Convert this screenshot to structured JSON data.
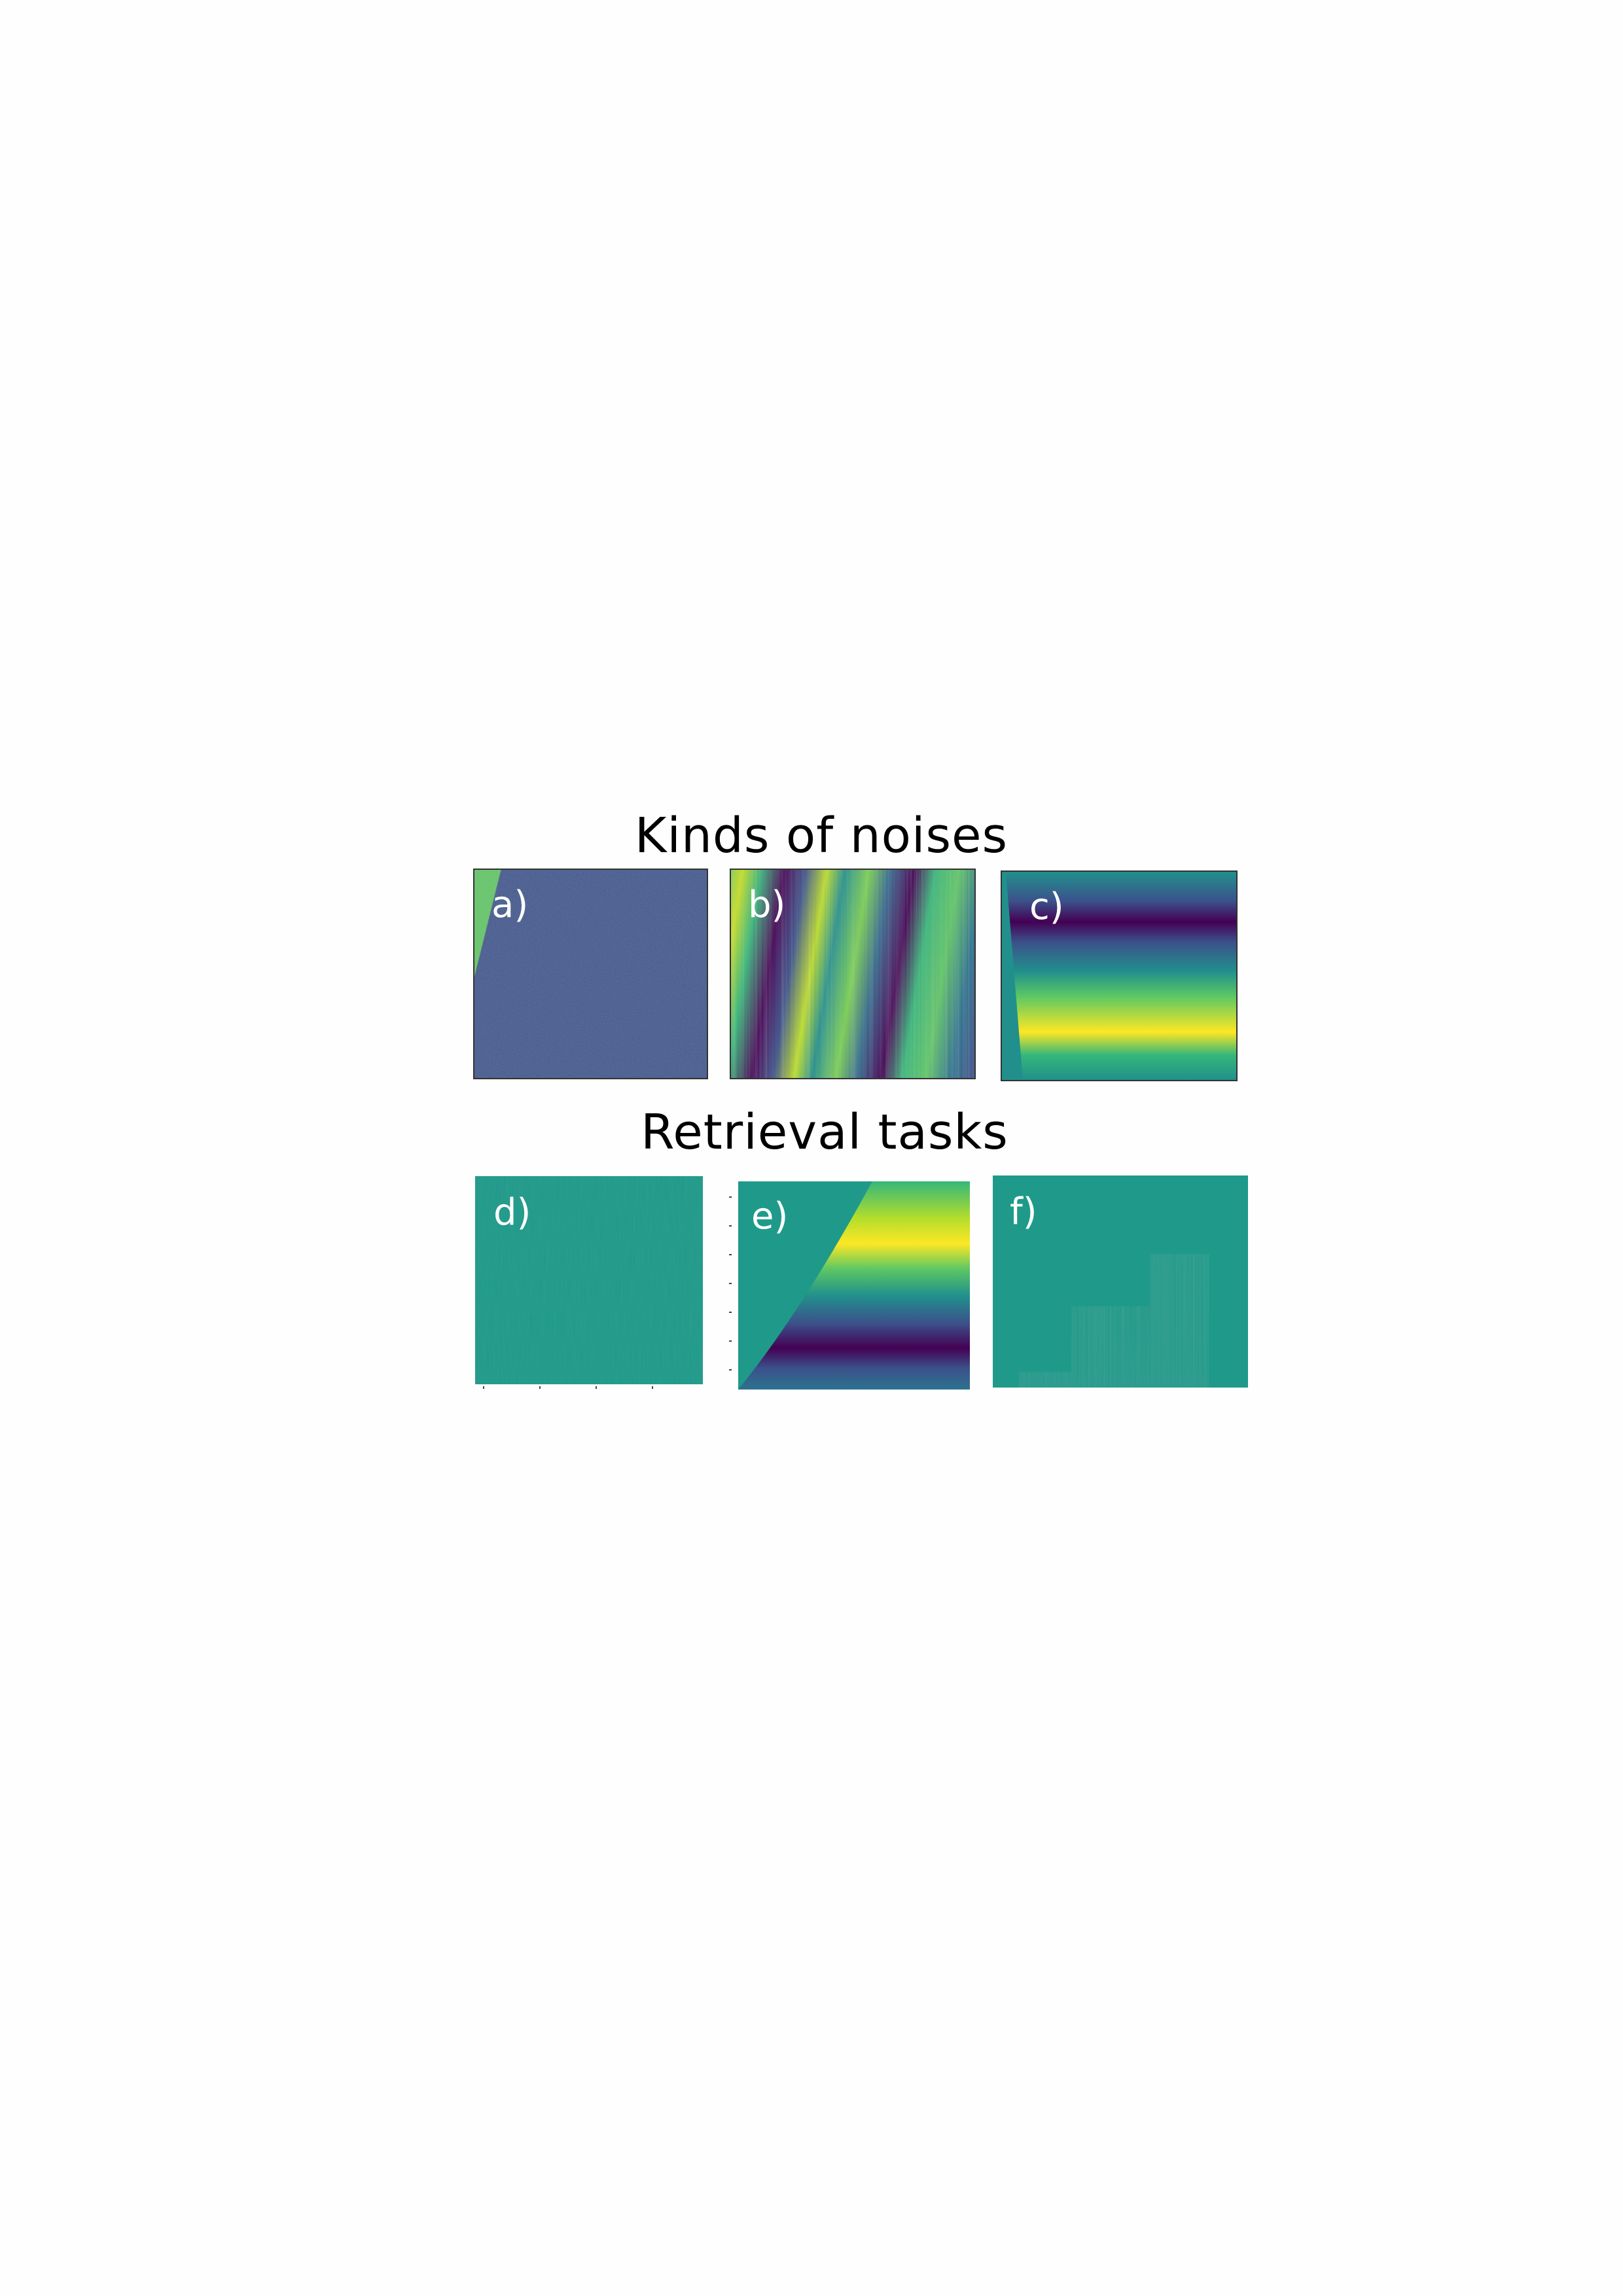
{
  "headings": {
    "top": "Kinds of noises",
    "bottom": "Retrieval tasks"
  },
  "panels": {
    "a": {
      "label": "a)"
    },
    "b": {
      "label": "b)"
    },
    "c": {
      "label": "c)"
    },
    "d": {
      "label": "d)"
    },
    "e": {
      "label": "e)"
    },
    "f": {
      "label": "f)"
    }
  },
  "colormap": [
    "#440154",
    "#3b528b",
    "#21908c",
    "#5dc863",
    "#fde725"
  ]
}
